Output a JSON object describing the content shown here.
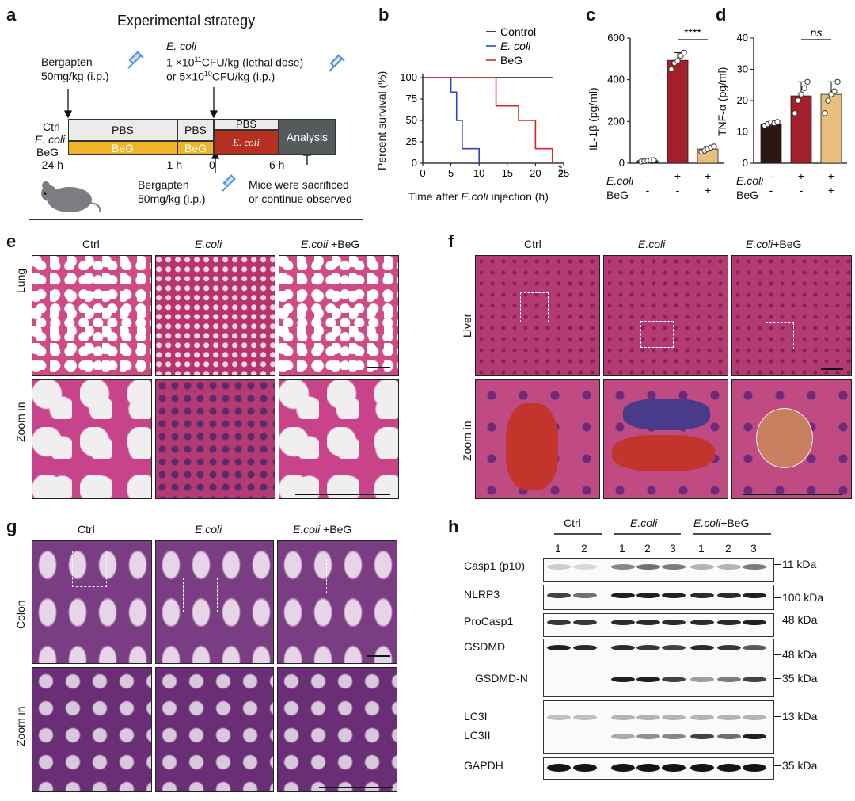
{
  "panels": {
    "a": {
      "label": "a",
      "title": "Experimental strategy",
      "pretreat_drug": "Bergapten",
      "pretreat_dose": "50mg/kg (i.p.)",
      "ecoli_title": "E. coli",
      "ecoli_dose1_pre": "1 ×10",
      "ecoli_dose1_exp": "11",
      "ecoli_dose1_post": "CFU/kg (lethal dose)",
      "ecoli_dose2_pre": "or 5×10",
      "ecoli_dose2_exp": "10",
      "ecoli_dose2_post": "CFU/kg (i.p.)",
      "row_ctrl": "Ctrl",
      "row_ecoli": "E. coli",
      "row_beg": "BeG",
      "seg_pbs1": "PBS",
      "seg_pbs2": "PBS",
      "seg_pbs3": "PBS",
      "seg_beg1": "BeG",
      "seg_beg2": "BeG",
      "seg_ecoli": "E. coli",
      "seg_analysis": "Analysis",
      "t1": "-24 h",
      "t2": "-1 h",
      "t3": "0",
      "t4": "6 h",
      "second_drug": "Bergapten",
      "second_dose": "50mg/kg (i.p.)",
      "end_line1": "Mice were sacrificed",
      "end_line2": "or continue observed",
      "colors": {
        "pbs": "#ebebeb",
        "beg": "#f0b429",
        "ecoli": "#b5301f",
        "analysis": "#555a5c"
      }
    },
    "b": {
      "label": "b",
      "ylabel": "Percent survival (%)",
      "xlabel_pre": "Time after ",
      "xlabel_it": "E.coli",
      "xlabel_post": "  injection (h)",
      "sig": "***"
    },
    "c": {
      "label": "c",
      "ylabel": "IL-1β (pg/ml)",
      "sig": "****",
      "row1": "E.coli",
      "row2": "BeG"
    },
    "d": {
      "label": "d",
      "ylabel": "TNF-α (pg/ml)",
      "sig": "ns",
      "row1": "E.coli",
      "row2": "BeG"
    },
    "e": {
      "label": "e",
      "col1": "Ctrl",
      "col2": "E.coli",
      "col3_it": "E.coli",
      "col3_rest": " +BeG",
      "row1": "Lung",
      "row2": "Zoom in"
    },
    "f": {
      "label": "f",
      "col1": "Ctrl",
      "col2": "E.coli",
      "col3_it": "E.coli",
      "col3_rest": "+BeG",
      "row1": "Liver",
      "row2": "Zoom in"
    },
    "g": {
      "label": "g",
      "col1": "Ctrl",
      "col2": "E.coli",
      "col3_it": "E.coli",
      "col3_rest": " +BeG",
      "row1": "Colon",
      "row2": "Zoom in"
    },
    "h": {
      "label": "h",
      "group1": "Ctrl",
      "group2": "E.coli",
      "group3_it": "E.coli",
      "group3_rest": "+BeG",
      "lanes": [
        "1",
        "2",
        "1",
        "2",
        "3",
        "1",
        "2",
        "3"
      ],
      "rows": [
        "Casp1 (p10)",
        "NLRP3",
        "ProCasp1",
        "GSDMD",
        "GSDMD-N",
        "LC3I",
        "LC3II",
        "GAPDH"
      ],
      "kda": [
        "11 kDa",
        "100 kDa",
        "48 kDa",
        "48 kDa",
        "35 kDa",
        "13 kDa",
        "35 kDa"
      ]
    }
  },
  "chart_data": [
    {
      "type": "line",
      "panel": "b",
      "xlim": [
        0,
        25
      ],
      "ylim": [
        0,
        100
      ],
      "xticks": [
        0,
        5,
        10,
        15,
        20,
        25
      ],
      "yticks": [
        0,
        25,
        50,
        75,
        100
      ],
      "legend_position": "top-right",
      "series": [
        {
          "name": "Control",
          "color": "#111111",
          "x": [
            0,
            23
          ],
          "y": [
            100,
            100
          ],
          "step": true
        },
        {
          "name": "E. coli",
          "color": "#2f44c4",
          "x": [
            0,
            5,
            6,
            7,
            10
          ],
          "y": [
            100,
            83,
            50,
            17,
            0
          ],
          "step": true
        },
        {
          "name": "BeG",
          "color": "#e0251b",
          "x": [
            0,
            13,
            17,
            20,
            23
          ],
          "y": [
            100,
            67,
            50,
            17,
            0
          ],
          "step": true
        }
      ]
    },
    {
      "type": "bar",
      "panel": "c",
      "ylim": [
        0,
        600
      ],
      "yticks": [
        0,
        200,
        400,
        600
      ],
      "categories": [
        "-/-",
        "+/-",
        "+/+"
      ],
      "ecoli": [
        "-",
        "+",
        "+"
      ],
      "beg": [
        "-",
        "-",
        "+"
      ],
      "values": [
        12,
        493,
        68
      ],
      "colors": [
        "#2b1714",
        "#a31f2a",
        "#e8bf7c"
      ],
      "points": [
        [
          8,
          10,
          12,
          14,
          15
        ],
        [
          450,
          480,
          490,
          515,
          530
        ],
        [
          55,
          60,
          68,
          75,
          80
        ]
      ]
    },
    {
      "type": "bar",
      "panel": "d",
      "ylim": [
        0,
        40
      ],
      "yticks": [
        0,
        10,
        20,
        30,
        40
      ],
      "categories": [
        "-/-",
        "+/-",
        "+/+"
      ],
      "ecoli": [
        "-",
        "+",
        "+"
      ],
      "beg": [
        "-",
        "-",
        "+"
      ],
      "values": [
        12.5,
        21.5,
        22
      ],
      "colors": [
        "#2b1714",
        "#a31f2a",
        "#e8bf7c"
      ],
      "points": [
        [
          12,
          12.5,
          13,
          12.8,
          13.2
        ],
        [
          16,
          20,
          22,
          24,
          26
        ],
        [
          16,
          20,
          22,
          23,
          26
        ]
      ]
    }
  ]
}
